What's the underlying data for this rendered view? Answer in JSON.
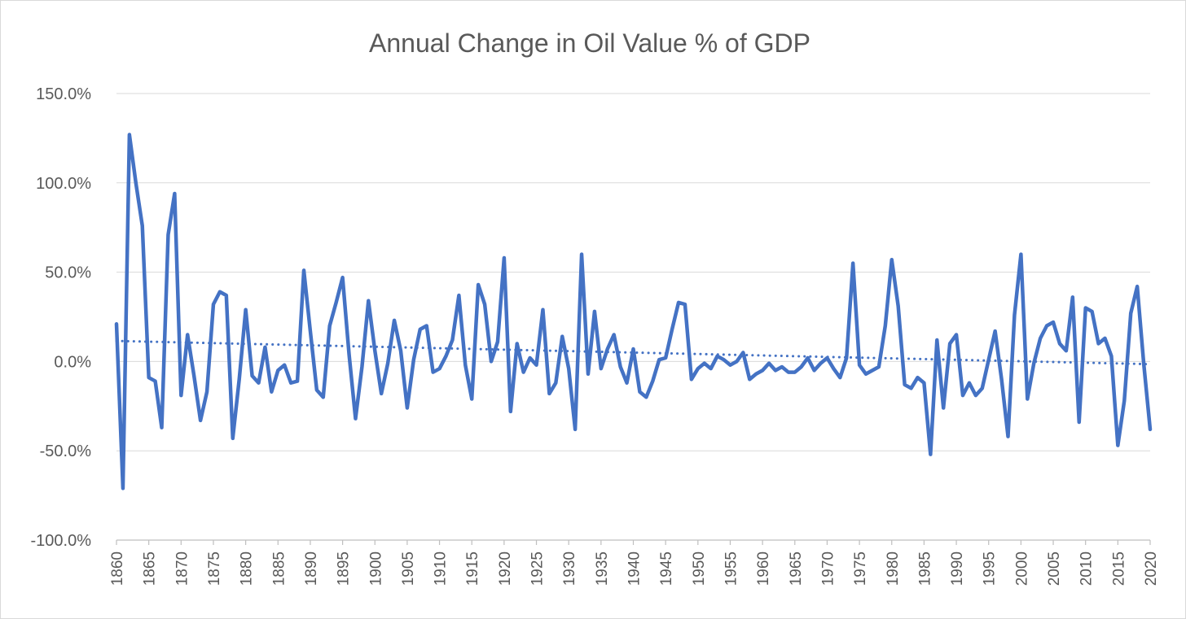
{
  "chart_data": {
    "type": "line",
    "title": "Annual Change in Oil Value % of GDP",
    "xlabel": "",
    "ylabel": "",
    "ylim": [
      -100,
      150
    ],
    "y_ticks": [
      {
        "value": 150,
        "label": "150.0%"
      },
      {
        "value": 100,
        "label": "100.0%"
      },
      {
        "value": 50,
        "label": "50.0%"
      },
      {
        "value": 0,
        "label": "0.0%"
      },
      {
        "value": -50,
        "label": "-50.0%"
      },
      {
        "value": -100,
        "label": "-100.0%"
      }
    ],
    "x_range": [
      1860,
      2020
    ],
    "x_ticks": [
      "1860",
      "1865",
      "1870",
      "1875",
      "1880",
      "1885",
      "1890",
      "1895",
      "1900",
      "1905",
      "1910",
      "1915",
      "1920",
      "1925",
      "1930",
      "1935",
      "1940",
      "1945",
      "1950",
      "1955",
      "1960",
      "1965",
      "1970",
      "1975",
      "1980",
      "1985",
      "1990",
      "1995",
      "2000",
      "2005",
      "2010",
      "2015",
      "2020"
    ],
    "grid": true,
    "legend": "none",
    "series": [
      {
        "color": "#4472c4",
        "x": [
          1860,
          1861,
          1862,
          1863,
          1864,
          1865,
          1866,
          1867,
          1868,
          1869,
          1870,
          1871,
          1872,
          1873,
          1874,
          1875,
          1876,
          1877,
          1878,
          1879,
          1880,
          1881,
          1882,
          1883,
          1884,
          1885,
          1886,
          1887,
          1888,
          1889,
          1890,
          1891,
          1892,
          1893,
          1894,
          1895,
          1896,
          1897,
          1898,
          1899,
          1900,
          1901,
          1902,
          1903,
          1904,
          1905,
          1906,
          1907,
          1908,
          1909,
          1910,
          1911,
          1912,
          1913,
          1914,
          1915,
          1916,
          1917,
          1918,
          1919,
          1920,
          1921,
          1922,
          1923,
          1924,
          1925,
          1926,
          1927,
          1928,
          1929,
          1930,
          1931,
          1932,
          1933,
          1934,
          1935,
          1936,
          1937,
          1938,
          1939,
          1940,
          1941,
          1942,
          1943,
          1944,
          1945,
          1946,
          1947,
          1948,
          1949,
          1950,
          1951,
          1952,
          1953,
          1954,
          1955,
          1956,
          1957,
          1958,
          1959,
          1960,
          1961,
          1962,
          1963,
          1964,
          1965,
          1966,
          1967,
          1968,
          1969,
          1970,
          1971,
          1972,
          1973,
          1974,
          1975,
          1976,
          1977,
          1978,
          1979,
          1980,
          1981,
          1982,
          1983,
          1984,
          1985,
          1986,
          1987,
          1988,
          1989,
          1990,
          1991,
          1992,
          1993,
          1994,
          1995,
          1996,
          1997,
          1998,
          1999,
          2000,
          2001,
          2002,
          2003,
          2004,
          2005,
          2006,
          2007,
          2008,
          2009,
          2010,
          2011,
          2012,
          2013,
          2014,
          2015,
          2016,
          2017,
          2018,
          2019,
          2020
        ],
        "values": [
          21,
          -71,
          127,
          100,
          76,
          -9,
          -11,
          -37,
          71,
          94,
          -19,
          15,
          -8,
          -33,
          -17,
          32,
          39,
          37,
          -43,
          -10,
          29,
          -8,
          -12,
          8,
          -17,
          -5,
          -2,
          -12,
          -11,
          51,
          17,
          -16,
          -20,
          20,
          33,
          47,
          4,
          -32,
          -3,
          34,
          6,
          -18,
          -1,
          23,
          6,
          -26,
          1,
          18,
          20,
          -6,
          -4,
          3,
          12,
          37,
          -2,
          -21,
          43,
          32,
          0,
          11,
          58,
          -28,
          10,
          -6,
          2,
          -2,
          29,
          -18,
          -12,
          14,
          -4,
          -38,
          60,
          -7,
          28,
          -4,
          7,
          15,
          -3,
          -12,
          7,
          -17,
          -20,
          -11,
          1,
          2,
          18,
          33,
          32,
          -10,
          -4,
          -1,
          -4,
          3,
          1,
          -2,
          0,
          5,
          -10,
          -7,
          -5,
          -1,
          -5,
          -3,
          -6,
          -6,
          -3,
          2,
          -5,
          -1,
          2,
          -4,
          -9,
          2,
          55,
          -2,
          -7,
          -5,
          -3,
          20,
          57,
          31,
          -13,
          -15,
          -9,
          -12,
          -52,
          12,
          -26,
          10,
          15,
          -19,
          -12,
          -19,
          -15,
          1,
          17,
          -10,
          -42,
          26,
          60,
          -21,
          -1,
          13,
          20,
          22,
          10,
          6,
          36,
          -34,
          30,
          28,
          10,
          13,
          3,
          -47,
          -22,
          27,
          42,
          -1,
          -38
        ]
      }
    ],
    "trendline": {
      "type": "linear",
      "color": "#4472c4",
      "style": "dotted",
      "x": [
        1860,
        2020
      ],
      "values": [
        11.5,
        -1.5
      ]
    }
  }
}
